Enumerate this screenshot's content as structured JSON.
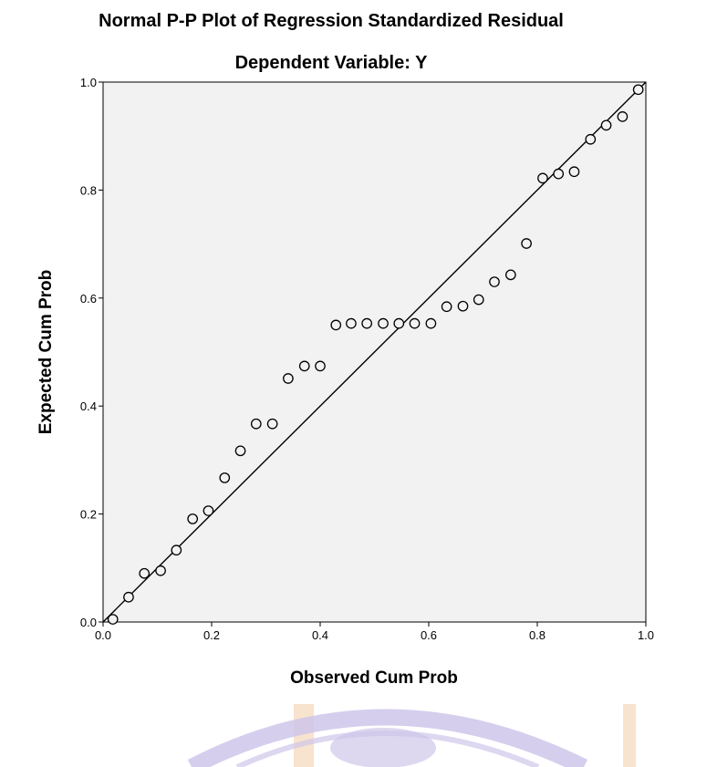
{
  "chart_data": {
    "type": "scatter",
    "title": "Normal P-P Plot of Regression Standardized Residual",
    "subtitle": "Dependent Variable: Y",
    "xlabel": "Observed Cum Prob",
    "ylabel": "Expected Cum Prob",
    "xlim": [
      0.0,
      1.0
    ],
    "ylim": [
      0.0,
      1.0
    ],
    "x_ticks": [
      "0.0",
      "0.2",
      "0.4",
      "0.6",
      "0.8",
      "1.0"
    ],
    "y_ticks": [
      "0.0",
      "0.2",
      "0.4",
      "0.6",
      "0.8",
      "1.0"
    ],
    "grid": false,
    "reference_line": {
      "from": [
        0.0,
        0.0
      ],
      "to": [
        1.0,
        1.0
      ]
    },
    "points": [
      {
        "x": 0.018,
        "y": 0.005
      },
      {
        "x": 0.047,
        "y": 0.046
      },
      {
        "x": 0.076,
        "y": 0.09
      },
      {
        "x": 0.106,
        "y": 0.095
      },
      {
        "x": 0.135,
        "y": 0.133
      },
      {
        "x": 0.165,
        "y": 0.191
      },
      {
        "x": 0.194,
        "y": 0.206
      },
      {
        "x": 0.224,
        "y": 0.267
      },
      {
        "x": 0.253,
        "y": 0.317
      },
      {
        "x": 0.282,
        "y": 0.367
      },
      {
        "x": 0.312,
        "y": 0.367
      },
      {
        "x": 0.341,
        "y": 0.451
      },
      {
        "x": 0.371,
        "y": 0.474
      },
      {
        "x": 0.4,
        "y": 0.474
      },
      {
        "x": 0.429,
        "y": 0.55
      },
      {
        "x": 0.457,
        "y": 0.553
      },
      {
        "x": 0.486,
        "y": 0.553
      },
      {
        "x": 0.516,
        "y": 0.553
      },
      {
        "x": 0.545,
        "y": 0.553
      },
      {
        "x": 0.574,
        "y": 0.553
      },
      {
        "x": 0.604,
        "y": 0.553
      },
      {
        "x": 0.633,
        "y": 0.584
      },
      {
        "x": 0.663,
        "y": 0.585
      },
      {
        "x": 0.692,
        "y": 0.597
      },
      {
        "x": 0.721,
        "y": 0.63
      },
      {
        "x": 0.751,
        "y": 0.643
      },
      {
        "x": 0.78,
        "y": 0.701
      },
      {
        "x": 0.81,
        "y": 0.822
      },
      {
        "x": 0.839,
        "y": 0.83
      },
      {
        "x": 0.868,
        "y": 0.834
      },
      {
        "x": 0.898,
        "y": 0.894
      },
      {
        "x": 0.927,
        "y": 0.92
      },
      {
        "x": 0.957,
        "y": 0.936
      },
      {
        "x": 0.986,
        "y": 0.986
      }
    ],
    "colors": {
      "plot_background": "#f2f2f2",
      "axis": "#000000",
      "marker_stroke": "#000000",
      "marker_fill": "#f2f2f2",
      "reference_line": "#000000"
    }
  },
  "watermark": {
    "colors": {
      "band": "#ffffff",
      "emblem": "#cfc6ea",
      "stripe": "#f6dcc2"
    }
  }
}
